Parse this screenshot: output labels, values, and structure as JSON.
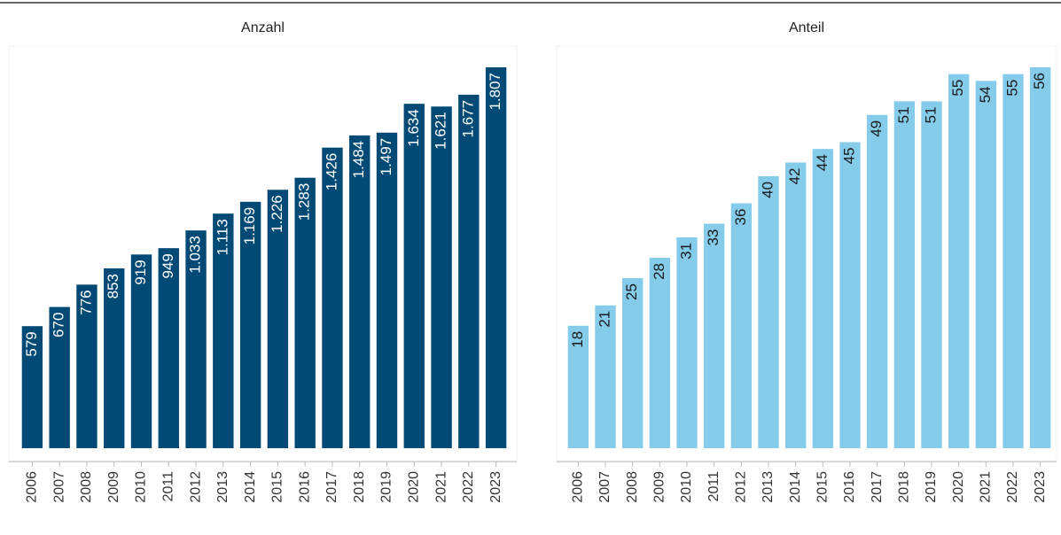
{
  "chart_data": [
    {
      "type": "bar",
      "title": "Anzahl",
      "color": "#004a75",
      "label_color": "#ffffff",
      "categories": [
        "2006",
        "2007",
        "2008",
        "2009",
        "2010",
        "2011",
        "2012",
        "2013",
        "2014",
        "2015",
        "2016",
        "2017",
        "2018",
        "2019",
        "2020",
        "2021",
        "2022",
        "2023"
      ],
      "values": [
        579,
        670,
        776,
        853,
        919,
        949,
        1033,
        1113,
        1169,
        1226,
        1283,
        1426,
        1484,
        1497,
        1634,
        1621,
        1677,
        1807
      ],
      "value_labels": [
        "579",
        "670",
        "776",
        "853",
        "919",
        "949",
        "1.033",
        "1.113",
        "1.169",
        "1.226",
        "1.283",
        "1.426",
        "1.484",
        "1.497",
        "1.634",
        "1.621",
        "1.677",
        "1.807"
      ]
    },
    {
      "type": "bar",
      "title": "Anteil",
      "color": "#85cbea",
      "label_color": "#1a1a1a",
      "categories": [
        "2006",
        "2007",
        "2008",
        "2009",
        "2010",
        "2011",
        "2012",
        "2013",
        "2014",
        "2015",
        "2016",
        "2017",
        "2018",
        "2019",
        "2020",
        "2021",
        "2022",
        "2023"
      ],
      "values": [
        18,
        21,
        25,
        28,
        31,
        33,
        36,
        40,
        42,
        44,
        45,
        49,
        51,
        51,
        55,
        54,
        55,
        56
      ]
    }
  ]
}
